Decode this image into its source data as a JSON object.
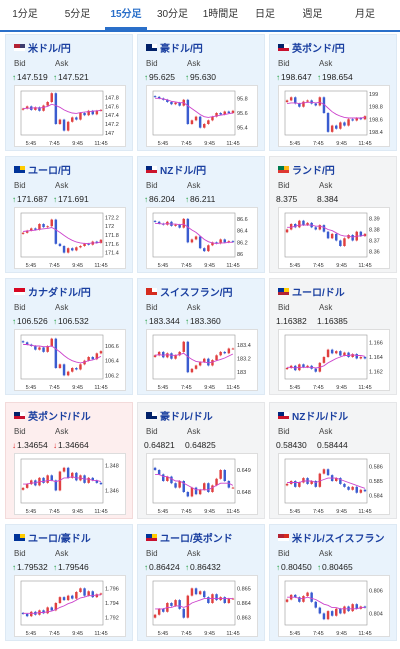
{
  "tabs": [
    {
      "label": "1分足",
      "active": false
    },
    {
      "label": "5分足",
      "active": false
    },
    {
      "label": "15分足",
      "active": true
    },
    {
      "label": "30分足",
      "active": false
    },
    {
      "label": "1時間足",
      "active": false
    },
    {
      "label": "日足",
      "active": false
    },
    {
      "label": "週足",
      "active": false
    },
    {
      "label": "月足",
      "active": false
    }
  ],
  "labels": {
    "bid": "Bid",
    "ask": "Ask"
  },
  "colors": {
    "accent": "#2a6fc9",
    "up": "#1a9a3a",
    "down": "#dd2222",
    "ma": "#cc44cc",
    "candle_up": "#e04040",
    "candle_down": "#3a5cd0"
  },
  "cards": [
    {
      "pair": "米ドル/円",
      "trend": "up",
      "bid": "147.519",
      "ask": "147.521",
      "flag": [
        "#b22234",
        "#ffffff",
        "#3c3b6e"
      ],
      "chart_data": {
        "type": "candlestick",
        "x_ticks": [
          "5:45",
          "7:45",
          "9:45",
          "11:45"
        ],
        "y_ticks": [
          "147.8",
          "147.6",
          "147.4",
          "147.2",
          "147"
        ],
        "y_range": [
          146.95,
          147.95
        ],
        "close": [
          147.55,
          147.6,
          147.52,
          147.58,
          147.5,
          147.62,
          147.7,
          147.9,
          147.2,
          147.3,
          147.05,
          147.25,
          147.35,
          147.3,
          147.45,
          147.4,
          147.5,
          147.42,
          147.5,
          147.52
        ],
        "ma": [
          147.55,
          147.56,
          147.56,
          147.57,
          147.56,
          147.58,
          147.6,
          147.65,
          147.62,
          147.58,
          147.52,
          147.48,
          147.45,
          147.44,
          147.46,
          147.47,
          147.48,
          147.49,
          147.5,
          147.51
        ]
      }
    },
    {
      "pair": "豪ドル/円",
      "trend": "up",
      "bid": "95.625",
      "ask": "95.630",
      "flag": [
        "#012169",
        "#012169",
        "#ffffff"
      ],
      "chart_data": {
        "type": "candlestick",
        "x_ticks": [
          "5:45",
          "7:45",
          "9:45",
          "11:45"
        ],
        "y_ticks": [
          "95.8",
          "95.6",
          "95.4"
        ],
        "y_range": [
          95.3,
          95.9
        ],
        "close": [
          95.82,
          95.8,
          95.78,
          95.75,
          95.72,
          95.74,
          95.7,
          95.78,
          95.45,
          95.5,
          95.55,
          95.4,
          95.45,
          95.5,
          95.55,
          95.6,
          95.58,
          95.62,
          95.6,
          95.63
        ],
        "ma": [
          95.8,
          95.8,
          95.79,
          95.78,
          95.76,
          95.75,
          95.74,
          95.74,
          95.7,
          95.66,
          95.62,
          95.58,
          95.55,
          95.54,
          95.55,
          95.56,
          95.57,
          95.58,
          95.59,
          95.6
        ]
      }
    },
    {
      "pair": "英ポンド/円",
      "trend": "up",
      "bid": "198.647",
      "ask": "198.654",
      "flag": [
        "#012169",
        "#c8102e",
        "#ffffff"
      ],
      "chart_data": {
        "type": "candlestick",
        "x_ticks": [
          "5:45",
          "7:45",
          "9:45",
          "11:45"
        ],
        "y_ticks": [
          "199",
          "198.8",
          "198.6",
          "198.4"
        ],
        "y_range": [
          198.35,
          199.05
        ],
        "close": [
          198.9,
          198.95,
          198.85,
          198.8,
          198.88,
          198.9,
          198.85,
          198.82,
          198.95,
          198.7,
          198.4,
          198.5,
          198.45,
          198.55,
          198.5,
          198.6,
          198.58,
          198.62,
          198.6,
          198.65
        ],
        "ma": [
          198.85,
          198.86,
          198.86,
          198.85,
          198.86,
          198.87,
          198.87,
          198.86,
          198.87,
          198.84,
          198.78,
          198.72,
          198.68,
          198.65,
          198.63,
          198.62,
          198.62,
          198.62,
          198.62,
          198.63
        ]
      }
    },
    {
      "pair": "ユーロ/円",
      "trend": "up",
      "bid": "171.687",
      "ask": "171.691",
      "flag": [
        "#003399",
        "#003399",
        "#ffcc00"
      ],
      "chart_data": {
        "type": "candlestick",
        "x_ticks": [
          "5:45",
          "7:45",
          "9:45",
          "11:45"
        ],
        "y_ticks": [
          "172.2",
          "172",
          "171.8",
          "171.6",
          "171.4"
        ],
        "y_range": [
          171.3,
          172.3
        ],
        "close": [
          171.85,
          171.9,
          171.95,
          171.92,
          172.05,
          171.98,
          172.0,
          172.15,
          171.6,
          171.55,
          171.4,
          171.5,
          171.45,
          171.52,
          171.55,
          171.6,
          171.58,
          171.65,
          171.62,
          171.69
        ],
        "ma": [
          171.88,
          171.89,
          171.9,
          171.91,
          171.93,
          171.94,
          171.95,
          171.97,
          171.92,
          171.86,
          171.79,
          171.73,
          171.68,
          171.64,
          171.62,
          171.61,
          171.61,
          171.62,
          171.62,
          171.64
        ]
      }
    },
    {
      "pair": "NZドル/円",
      "trend": "up",
      "bid": "86.204",
      "ask": "86.211",
      "flag": [
        "#00247d",
        "#cc142b",
        "#ffffff"
      ],
      "chart_data": {
        "type": "candlestick",
        "x_ticks": [
          "5:45",
          "7:45",
          "9:45",
          "11:45"
        ],
        "y_ticks": [
          "86.6",
          "86.4",
          "86.2",
          "86"
        ],
        "y_range": [
          85.95,
          86.7
        ],
        "close": [
          86.55,
          86.52,
          86.5,
          86.55,
          86.48,
          86.5,
          86.45,
          86.6,
          86.2,
          86.25,
          86.3,
          86.1,
          86.05,
          86.15,
          86.2,
          86.18,
          86.25,
          86.2,
          86.22,
          86.21
        ],
        "ma": [
          86.52,
          86.52,
          86.51,
          86.52,
          86.51,
          86.51,
          86.5,
          86.51,
          86.46,
          86.41,
          86.37,
          86.31,
          86.25,
          86.21,
          86.19,
          86.18,
          86.19,
          86.19,
          86.2,
          86.2
        ]
      }
    },
    {
      "pair": "ランド/円",
      "trend": "none",
      "bid": "8.375",
      "ask": "8.384",
      "flag": [
        "#007a4d",
        "#de3831",
        "#ffb612"
      ],
      "chart_data": {
        "type": "candlestick",
        "x_ticks": [
          "5:45",
          "7:45",
          "9:45",
          "11:45"
        ],
        "y_ticks": [
          "8.39",
          "8.38",
          "8.37",
          "8.36"
        ],
        "y_range": [
          8.355,
          8.395
        ],
        "close": [
          8.38,
          8.385,
          8.382,
          8.388,
          8.384,
          8.386,
          8.382,
          8.38,
          8.384,
          8.378,
          8.372,
          8.376,
          8.37,
          8.365,
          8.372,
          8.375,
          8.37,
          8.378,
          8.374,
          8.376
        ],
        "ma": [
          8.382,
          8.382,
          8.383,
          8.384,
          8.384,
          8.384,
          8.384,
          8.383,
          8.383,
          8.382,
          8.38,
          8.379,
          8.377,
          8.375,
          8.374,
          8.374,
          8.373,
          8.374,
          8.374,
          8.375
        ]
      }
    },
    {
      "pair": "カナダドル/円",
      "trend": "up",
      "bid": "106.526",
      "ask": "106.532",
      "flag": [
        "#d80621",
        "#ffffff",
        "#d80621"
      ],
      "chart_data": {
        "type": "candlestick",
        "x_ticks": [
          "5:45",
          "7:45",
          "9:45",
          "11:45"
        ],
        "y_ticks": [
          "106.6",
          "106.4",
          "106.2"
        ],
        "y_range": [
          106.15,
          106.75
        ],
        "close": [
          106.65,
          106.62,
          106.6,
          106.55,
          106.58,
          106.52,
          106.6,
          106.7,
          106.3,
          106.35,
          106.2,
          106.25,
          106.3,
          106.28,
          106.35,
          106.4,
          106.45,
          106.42,
          106.5,
          106.53
        ],
        "ma": [
          106.62,
          106.62,
          106.61,
          106.6,
          106.6,
          106.59,
          106.59,
          106.6,
          106.56,
          106.52,
          106.47,
          106.43,
          106.4,
          106.38,
          106.37,
          106.38,
          106.4,
          106.41,
          106.43,
          106.46
        ]
      }
    },
    {
      "pair": "スイスフラン/円",
      "trend": "up",
      "bid": "183.344",
      "ask": "183.360",
      "flag": [
        "#d52b1e",
        "#d52b1e",
        "#ffffff"
      ],
      "chart_data": {
        "type": "candlestick",
        "x_ticks": [
          "5:45",
          "7:45",
          "9:45",
          "11:45"
        ],
        "y_ticks": [
          "183.4",
          "183.2",
          "183"
        ],
        "y_range": [
          182.9,
          183.55
        ],
        "close": [
          183.25,
          183.3,
          183.22,
          183.28,
          183.2,
          183.25,
          183.3,
          183.45,
          183.0,
          183.05,
          183.1,
          183.15,
          183.2,
          183.1,
          183.18,
          183.25,
          183.3,
          183.28,
          183.35,
          183.35
        ],
        "ma": [
          183.25,
          183.26,
          183.25,
          183.26,
          183.25,
          183.25,
          183.26,
          183.28,
          183.23,
          183.19,
          183.16,
          183.15,
          183.15,
          183.14,
          183.15,
          183.17,
          183.19,
          183.21,
          183.24,
          183.27
        ]
      }
    },
    {
      "pair": "ユーロ/ドル",
      "trend": "none",
      "bid": "1.16382",
      "ask": "1.16385",
      "flag": [
        "#003399",
        "#b22234",
        "#ffcc00"
      ],
      "chart_data": {
        "type": "candlestick",
        "x_ticks": [
          "5:45",
          "7:45",
          "9:45",
          "11:45"
        ],
        "y_ticks": [
          "1.166",
          "1.164",
          "1.162"
        ],
        "y_range": [
          1.161,
          1.167
        ],
        "close": [
          1.1625,
          1.1628,
          1.1622,
          1.163,
          1.1626,
          1.1628,
          1.1624,
          1.162,
          1.1632,
          1.164,
          1.165,
          1.1645,
          1.1648,
          1.1642,
          1.1646,
          1.164,
          1.1644,
          1.1638,
          1.164,
          1.1638
        ],
        "ma": [
          1.1626,
          1.1626,
          1.1625,
          1.1626,
          1.1626,
          1.1626,
          1.1626,
          1.1625,
          1.1626,
          1.1628,
          1.1632,
          1.1635,
          1.1638,
          1.164,
          1.1642,
          1.1642,
          1.1643,
          1.1642,
          1.1642,
          1.1641
        ]
      }
    },
    {
      "pair": "英ポンド/ドル",
      "trend": "down",
      "bid": "1.34654",
      "ask": "1.34664",
      "flag": [
        "#012169",
        "#c8102e",
        "#ffffff"
      ],
      "chart_data": {
        "type": "candlestick",
        "x_ticks": [
          "5:45",
          "7:45",
          "9:45",
          "11:45"
        ],
        "y_ticks": [
          "1.348",
          "1.346"
        ],
        "y_range": [
          1.345,
          1.3485
        ],
        "close": [
          1.3462,
          1.3465,
          1.3468,
          1.3464,
          1.347,
          1.3466,
          1.3472,
          1.3468,
          1.346,
          1.3475,
          1.3478,
          1.347,
          1.3474,
          1.3468,
          1.3472,
          1.3466,
          1.347,
          1.3468,
          1.3466,
          1.3465
        ],
        "ma": [
          1.3465,
          1.3465,
          1.3466,
          1.3466,
          1.3467,
          1.3467,
          1.3468,
          1.3468,
          1.3467,
          1.3468,
          1.347,
          1.347,
          1.3471,
          1.347,
          1.347,
          1.3469,
          1.3469,
          1.3468,
          1.3468,
          1.3467
        ]
      }
    },
    {
      "pair": "豪ドル/ドル",
      "trend": "none",
      "bid": "0.64821",
      "ask": "0.64825",
      "flag": [
        "#012169",
        "#012169",
        "#ffffff"
      ],
      "chart_data": {
        "type": "candlestick",
        "x_ticks": [
          "5:45",
          "7:45",
          "9:45",
          "11:45"
        ],
        "y_ticks": [
          "0.649",
          "0.648"
        ],
        "y_range": [
          0.6475,
          0.6495
        ],
        "close": [
          0.649,
          0.6488,
          0.6485,
          0.6487,
          0.6484,
          0.6482,
          0.6485,
          0.648,
          0.6478,
          0.6482,
          0.6479,
          0.6481,
          0.6484,
          0.648,
          0.6483,
          0.6486,
          0.649,
          0.6485,
          0.6482,
          0.6482
        ],
        "ma": [
          0.6488,
          0.6488,
          0.6487,
          0.6487,
          0.6486,
          0.6485,
          0.6485,
          0.6484,
          0.6483,
          0.6482,
          0.6481,
          0.6481,
          0.6481,
          0.6481,
          0.6482,
          0.6483,
          0.6484,
          0.6484,
          0.6484,
          0.6483
        ]
      }
    },
    {
      "pair": "NZドル/ドル",
      "trend": "none",
      "bid": "0.58430",
      "ask": "0.58444",
      "flag": [
        "#00247d",
        "#cc142b",
        "#ffffff"
      ],
      "chart_data": {
        "type": "candlestick",
        "x_ticks": [
          "5:45",
          "7:45",
          "9:45",
          "11:45"
        ],
        "y_ticks": [
          "0.586",
          "0.585",
          "0.584"
        ],
        "y_range": [
          0.5835,
          0.5865
        ],
        "close": [
          0.5848,
          0.585,
          0.5846,
          0.5849,
          0.5852,
          0.5848,
          0.585,
          0.5846,
          0.5855,
          0.5858,
          0.5854,
          0.585,
          0.5852,
          0.5848,
          0.5846,
          0.5844,
          0.5846,
          0.5842,
          0.5844,
          0.5843
        ],
        "ma": [
          0.5849,
          0.5849,
          0.5849,
          0.5849,
          0.585,
          0.585,
          0.585,
          0.5849,
          0.585,
          0.5851,
          0.5852,
          0.5852,
          0.5852,
          0.5851,
          0.585,
          0.5849,
          0.5848,
          0.5847,
          0.5846,
          0.5845
        ]
      }
    },
    {
      "pair": "ユーロ/豪ドル",
      "trend": "up",
      "bid": "1.79532",
      "ask": "1.79546",
      "flag": [
        "#003399",
        "#003399",
        "#ffcc00"
      ],
      "chart_data": {
        "type": "candlestick",
        "x_ticks": [
          "5:45",
          "7:45",
          "9:45",
          "11:45"
        ],
        "y_ticks": [
          "1.796",
          "1.794",
          "1.792"
        ],
        "y_range": [
          1.791,
          1.797
        ],
        "close": [
          1.7925,
          1.7922,
          1.7928,
          1.7924,
          1.793,
          1.7926,
          1.7934,
          1.793,
          1.794,
          1.7948,
          1.7944,
          1.795,
          1.7946,
          1.7955,
          1.796,
          1.795,
          1.7956,
          1.7948,
          1.7952,
          1.7953
        ],
        "ma": [
          1.7926,
          1.7926,
          1.7926,
          1.7926,
          1.7927,
          1.7927,
          1.7928,
          1.7929,
          1.7931,
          1.7934,
          1.7936,
          1.7939,
          1.7941,
          1.7944,
          1.7947,
          1.7948,
          1.795,
          1.795,
          1.7951,
          1.7951
        ]
      }
    },
    {
      "pair": "ユーロ/英ポンド",
      "trend": "up",
      "bid": "0.86424",
      "ask": "0.86432",
      "flag": [
        "#003399",
        "#c8102e",
        "#ffcc00"
      ],
      "chart_data": {
        "type": "candlestick",
        "x_ticks": [
          "5:45",
          "7:45",
          "9:45",
          "11:45"
        ],
        "y_ticks": [
          "0.865",
          "0.864",
          "0.863"
        ],
        "y_range": [
          0.8625,
          0.8655
        ],
        "close": [
          0.8632,
          0.8636,
          0.8634,
          0.864,
          0.8638,
          0.8642,
          0.8636,
          0.863,
          0.8645,
          0.865,
          0.8646,
          0.8648,
          0.8644,
          0.864,
          0.8646,
          0.8642,
          0.8644,
          0.864,
          0.8643,
          0.8643
        ],
        "ma": [
          0.8636,
          0.8636,
          0.8636,
          0.8637,
          0.8637,
          0.8638,
          0.8638,
          0.8637,
          0.8638,
          0.864,
          0.8641,
          0.8642,
          0.8643,
          0.8643,
          0.8643,
          0.8643,
          0.8643,
          0.8643,
          0.8643,
          0.8643
        ]
      }
    },
    {
      "pair": "米ドル/スイスフラン",
      "trend": "up",
      "bid": "0.80450",
      "ask": "0.80465",
      "flag": [
        "#b22234",
        "#ffffff",
        "#d52b1e"
      ],
      "chart_data": {
        "type": "candlestick",
        "x_ticks": [
          "5:45",
          "7:45",
          "9:45",
          "11:45"
        ],
        "y_ticks": [
          "0.806",
          "0.804"
        ],
        "y_range": [
          0.803,
          0.8068
        ],
        "close": [
          0.8052,
          0.8056,
          0.8054,
          0.805,
          0.8055,
          0.8058,
          0.805,
          0.8045,
          0.804,
          0.8035,
          0.8042,
          0.8038,
          0.8044,
          0.804,
          0.8046,
          0.8042,
          0.8048,
          0.8044,
          0.8046,
          0.8045
        ],
        "ma": [
          0.8054,
          0.8054,
          0.8054,
          0.8053,
          0.8053,
          0.8054,
          0.8053,
          0.8052,
          0.805,
          0.8048,
          0.8047,
          0.8045,
          0.8045,
          0.8044,
          0.8044,
          0.8044,
          0.8044,
          0.8044,
          0.8045,
          0.8045
        ]
      }
    }
  ]
}
